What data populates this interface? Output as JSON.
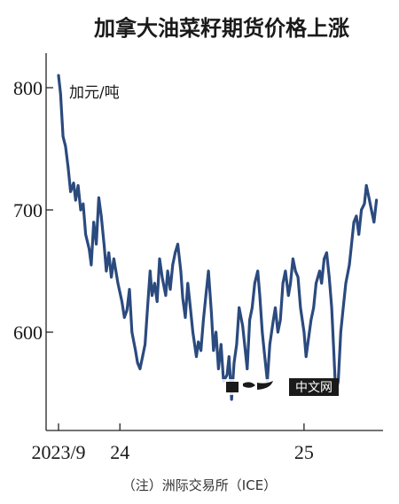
{
  "chart_data": {
    "type": "line",
    "title": "加拿大油菜籽期货价格上涨",
    "unit_label": "加元/吨",
    "source_note": "（注）洲际交易所（ICE）",
    "y_ticks": [
      600,
      700,
      800
    ],
    "y_tick_labels": [
      "600",
      "700",
      "800"
    ],
    "x_ticks": [
      {
        "label": "2023/9",
        "date": "2023-09-01"
      },
      {
        "label": "24",
        "date": "2024-01-01"
      },
      {
        "label": "25",
        "date": "2025-01-01"
      }
    ],
    "xlim": [
      "2023-09-01",
      "2025-05-31"
    ],
    "ylim": [
      530,
      830
    ],
    "grid": false,
    "line_color": "#2b4a7e",
    "series": [
      {
        "x": [
          "2023-09-01",
          "2023-09-05",
          "2023-09-10",
          "2023-09-15",
          "2023-09-20",
          "2023-09-25",
          "2023-10-01",
          "2023-10-05",
          "2023-10-10",
          "2023-10-15",
          "2023-10-20",
          "2023-10-25",
          "2023-11-01",
          "2023-11-05",
          "2023-11-10",
          "2023-11-15",
          "2023-11-20",
          "2023-11-25",
          "2023-12-01",
          "2023-12-05",
          "2023-12-10",
          "2023-12-15",
          "2023-12-20",
          "2023-12-28",
          "2024-01-05",
          "2024-01-10",
          "2024-01-15",
          "2024-01-20",
          "2024-01-25",
          "2024-02-01",
          "2024-02-05",
          "2024-02-10",
          "2024-02-15",
          "2024-02-20",
          "2024-02-25",
          "2024-03-01",
          "2024-03-05",
          "2024-03-10",
          "2024-03-15",
          "2024-03-20",
          "2024-03-25",
          "2024-04-01",
          "2024-04-05",
          "2024-04-10",
          "2024-04-15",
          "2024-04-20",
          "2024-04-25",
          "2024-05-01",
          "2024-05-05",
          "2024-05-10",
          "2024-05-15",
          "2024-05-20",
          "2024-05-25",
          "2024-06-01",
          "2024-06-05",
          "2024-06-10",
          "2024-06-15",
          "2024-06-20",
          "2024-06-25",
          "2024-07-01",
          "2024-07-05",
          "2024-07-10",
          "2024-07-15",
          "2024-07-20",
          "2024-07-25",
          "2024-08-01",
          "2024-08-05",
          "2024-08-10",
          "2024-08-15",
          "2024-08-20",
          "2024-08-25",
          "2024-09-01",
          "2024-09-05",
          "2024-09-10",
          "2024-09-15",
          "2024-09-20",
          "2024-09-25",
          "2024-10-01",
          "2024-10-05",
          "2024-10-10",
          "2024-10-15",
          "2024-10-20",
          "2024-10-25",
          "2024-11-01",
          "2024-11-05",
          "2024-11-10",
          "2024-11-15",
          "2024-11-20",
          "2024-11-25",
          "2024-12-01",
          "2024-12-05",
          "2024-12-10",
          "2024-12-15",
          "2024-12-20",
          "2024-12-25",
          "2025-01-01",
          "2025-01-05",
          "2025-01-10",
          "2025-01-15",
          "2025-01-20",
          "2025-01-25",
          "2025-02-01",
          "2025-02-05",
          "2025-02-10",
          "2025-02-15",
          "2025-02-20",
          "2025-02-25",
          "2025-03-01",
          "2025-03-05",
          "2025-03-10",
          "2025-03-15",
          "2025-03-20",
          "2025-03-25",
          "2025-04-01",
          "2025-04-05",
          "2025-04-10",
          "2025-04-15",
          "2025-04-20",
          "2025-04-25",
          "2025-05-01",
          "2025-05-05",
          "2025-05-10",
          "2025-05-15",
          "2025-05-20",
          "2025-05-25"
        ],
        "y": [
          810,
          795,
          760,
          752,
          735,
          715,
          722,
          708,
          720,
          700,
          705,
          680,
          668,
          655,
          690,
          672,
          710,
          695,
          670,
          650,
          665,
          645,
          660,
          640,
          625,
          612,
          618,
          635,
          600,
          585,
          575,
          570,
          580,
          590,
          620,
          650,
          630,
          640,
          625,
          660,
          645,
          630,
          650,
          635,
          655,
          665,
          672,
          650,
          628,
          612,
          640,
          620,
          600,
          580,
          592,
          585,
          610,
          630,
          650,
          615,
          585,
          600,
          570,
          590,
          560,
          565,
          580,
          545,
          575,
          590,
          620,
          605,
          590,
          570,
          610,
          620,
          640,
          650,
          630,
          600,
          580,
          560,
          590,
          610,
          620,
          600,
          610,
          640,
          650,
          630,
          640,
          660,
          650,
          645,
          620,
          600,
          580,
          595,
          610,
          620,
          640,
          650,
          640,
          660,
          665,
          645,
          620,
          585,
          550,
          560,
          600,
          620,
          640,
          655,
          670,
          690,
          695,
          680,
          700,
          705,
          720,
          710,
          700,
          690,
          708
        ]
      }
    ]
  },
  "watermark": {
    "text": "中文网"
  }
}
